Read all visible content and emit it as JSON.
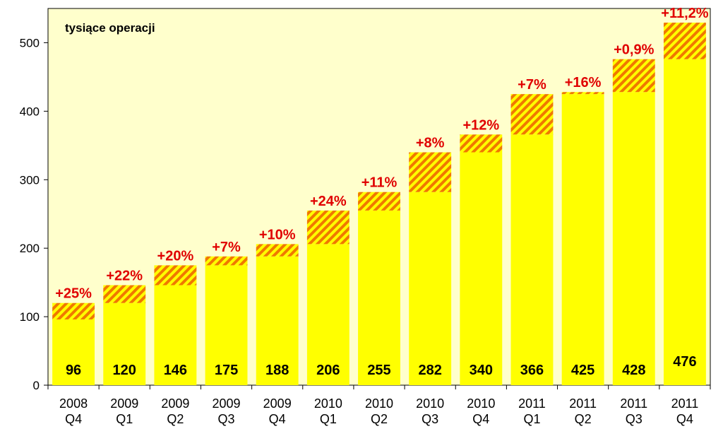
{
  "chart_data": {
    "type": "bar",
    "unit_label": "tysiące operacji",
    "categories": [
      {
        "year": "2008",
        "quarter": "Q4"
      },
      {
        "year": "2009",
        "quarter": "Q1"
      },
      {
        "year": "2009",
        "quarter": "Q2"
      },
      {
        "year": "2009",
        "quarter": "Q3"
      },
      {
        "year": "2009",
        "quarter": "Q4"
      },
      {
        "year": "2010",
        "quarter": "Q1"
      },
      {
        "year": "2010",
        "quarter": "Q2"
      },
      {
        "year": "2010",
        "quarter": "Q3"
      },
      {
        "year": "2010",
        "quarter": "Q4"
      },
      {
        "year": "2011",
        "quarter": "Q1"
      },
      {
        "year": "2011",
        "quarter": "Q2"
      },
      {
        "year": "2011",
        "quarter": "Q3"
      },
      {
        "year": "2011",
        "quarter": "Q4"
      }
    ],
    "values": [
      96,
      120,
      146,
      175,
      188,
      206,
      255,
      282,
      340,
      366,
      425,
      428,
      476
    ],
    "increment_labels": [
      "+25%",
      "+22%",
      "+20%",
      "+7%",
      "+10%",
      "+24%",
      "+11%",
      "+8%",
      "+12%",
      "+7%",
      "+16%",
      "+0,9%",
      "+11,2%"
    ],
    "ylim": [
      0,
      550
    ],
    "yticks": [
      0,
      100,
      200,
      300,
      400,
      500
    ],
    "grid": false,
    "colors": {
      "plot_background": "#FFFFCC",
      "bar_fill": "#FFFF00",
      "hatch_stripe": "#F07800",
      "hatch_background": "#FFFF00",
      "growth_label": "#E00000"
    }
  }
}
